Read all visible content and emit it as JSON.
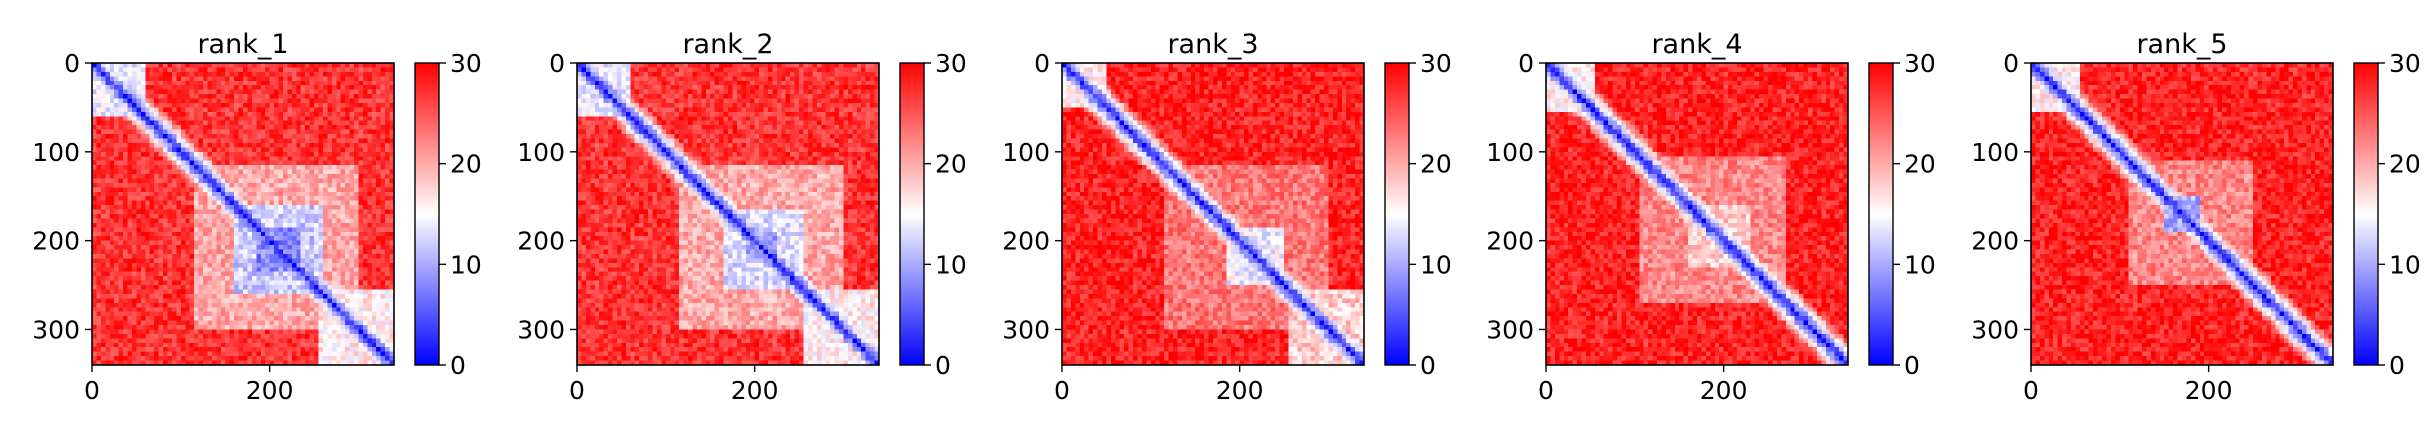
{
  "colors": {
    "low": "#0000ff",
    "mid": "#ffffff",
    "high": "#ff0000",
    "axis": "#000000"
  },
  "chart_data": [
    {
      "type": "heatmap",
      "title": "rank_1",
      "xlabel": "",
      "ylabel": "",
      "xlim": [
        0,
        340
      ],
      "ylim": [
        340,
        0
      ],
      "xticks": [
        0,
        200
      ],
      "yticks": [
        0,
        100,
        200,
        300
      ],
      "colorbar": {
        "range": [
          0,
          30
        ],
        "ticks": [
          0,
          10,
          20,
          30
        ],
        "cmap": "bwr"
      },
      "matrix_size": 340,
      "diagonal_value": 2,
      "background_value": 27,
      "domains": [
        {
          "range": [
            0,
            60
          ],
          "value": 14
        },
        {
          "range": [
            115,
            300
          ],
          "value": 20
        },
        {
          "range": [
            160,
            260
          ],
          "value": 12
        },
        {
          "range": [
            185,
            235
          ],
          "value": 8
        },
        {
          "range": [
            255,
            340
          ],
          "value": 16
        }
      ]
    },
    {
      "type": "heatmap",
      "title": "rank_2",
      "xlabel": "",
      "ylabel": "",
      "xlim": [
        0,
        340
      ],
      "ylim": [
        340,
        0
      ],
      "xticks": [
        0,
        200
      ],
      "yticks": [
        0,
        100,
        200,
        300
      ],
      "colorbar": {
        "range": [
          0,
          30
        ],
        "ticks": [
          0,
          10,
          20,
          30
        ],
        "cmap": "bwr"
      },
      "matrix_size": 340,
      "diagonal_value": 2,
      "background_value": 27,
      "domains": [
        {
          "range": [
            0,
            60
          ],
          "value": 14
        },
        {
          "range": [
            115,
            300
          ],
          "value": 20
        },
        {
          "range": [
            165,
            255
          ],
          "value": 13
        },
        {
          "range": [
            190,
            225
          ],
          "value": 9
        },
        {
          "range": [
            255,
            340
          ],
          "value": 16
        }
      ]
    },
    {
      "type": "heatmap",
      "title": "rank_3",
      "xlabel": "",
      "ylabel": "",
      "xlim": [
        0,
        340
      ],
      "ylim": [
        340,
        0
      ],
      "xticks": [
        0,
        200
      ],
      "yticks": [
        0,
        100,
        200,
        300
      ],
      "colorbar": {
        "range": [
          0,
          30
        ],
        "ticks": [
          0,
          10,
          20,
          30
        ],
        "cmap": "bwr"
      },
      "matrix_size": 340,
      "diagonal_value": 2,
      "background_value": 28,
      "domains": [
        {
          "range": [
            0,
            50
          ],
          "value": 16
        },
        {
          "range": [
            115,
            300
          ],
          "value": 23
        },
        {
          "range": [
            185,
            250
          ],
          "value": 14
        },
        {
          "range": [
            255,
            340
          ],
          "value": 18
        }
      ]
    },
    {
      "type": "heatmap",
      "title": "rank_4",
      "xlabel": "",
      "ylabel": "",
      "xlim": [
        0,
        340
      ],
      "ylim": [
        340,
        0
      ],
      "xticks": [
        0,
        200
      ],
      "yticks": [
        0,
        100,
        200,
        300
      ],
      "colorbar": {
        "range": [
          0,
          30
        ],
        "ticks": [
          0,
          10,
          20,
          30
        ],
        "cmap": "bwr"
      },
      "matrix_size": 340,
      "diagonal_value": 2,
      "background_value": 28,
      "domains": [
        {
          "range": [
            0,
            55
          ],
          "value": 16
        },
        {
          "range": [
            105,
            270
          ],
          "value": 22
        },
        {
          "range": [
            160,
            230
          ],
          "value": 18
        }
      ]
    },
    {
      "type": "heatmap",
      "title": "rank_5",
      "xlabel": "",
      "ylabel": "",
      "xlim": [
        0,
        340
      ],
      "ylim": [
        340,
        0
      ],
      "xticks": [
        0,
        200
      ],
      "yticks": [
        0,
        100,
        200,
        300
      ],
      "colorbar": {
        "range": [
          0,
          30
        ],
        "ticks": [
          0,
          10,
          20,
          30
        ],
        "cmap": "bwr"
      },
      "matrix_size": 340,
      "diagonal_value": 2,
      "background_value": 28,
      "domains": [
        {
          "range": [
            0,
            55
          ],
          "value": 16
        },
        {
          "range": [
            110,
            250
          ],
          "value": 22
        },
        {
          "range": [
            150,
            190
          ],
          "value": 10
        }
      ]
    }
  ]
}
